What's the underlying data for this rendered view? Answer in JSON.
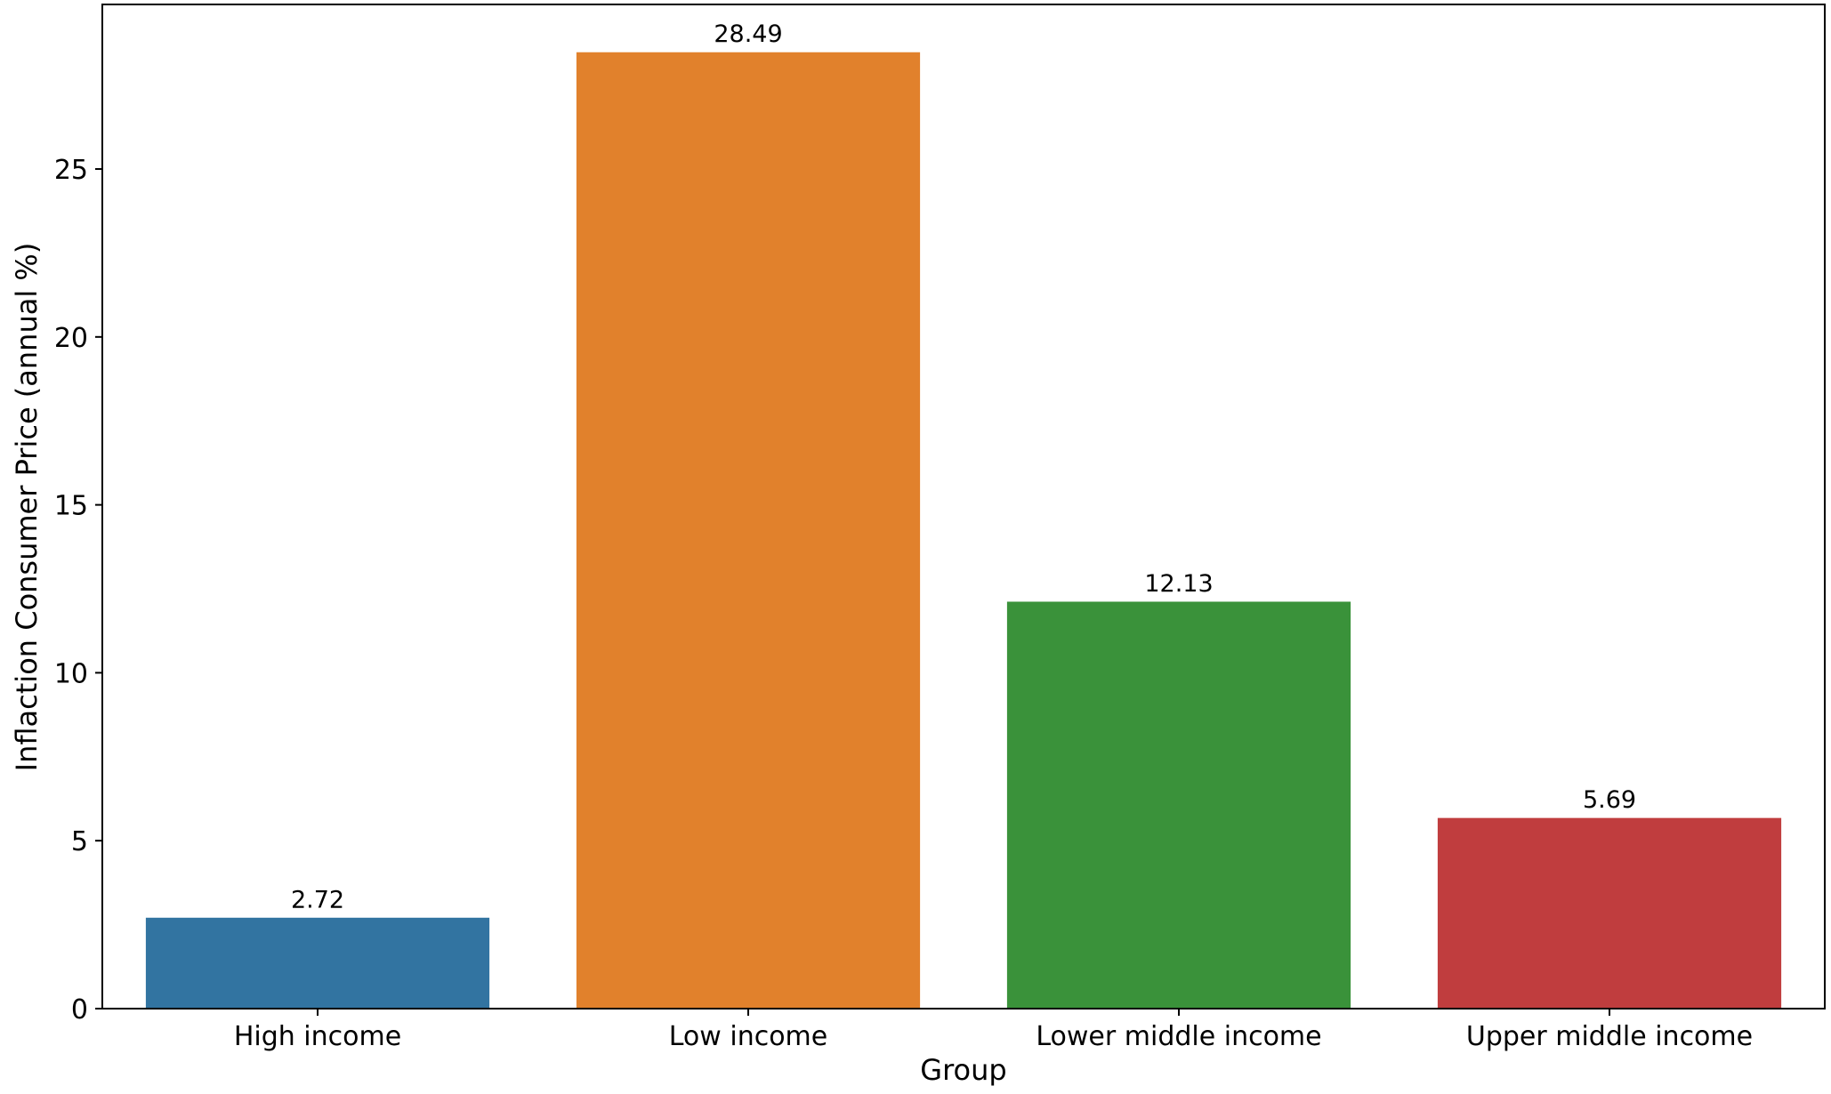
{
  "chart_data": {
    "type": "bar",
    "categories": [
      "High income",
      "Low income",
      "Lower middle income",
      "Upper middle income"
    ],
    "values": [
      2.72,
      28.49,
      12.13,
      5.69
    ],
    "value_labels": [
      "2.72",
      "28.49",
      "12.13",
      "5.69"
    ],
    "colors": [
      "#3274a1",
      "#e1812c",
      "#3a923a",
      "#c03d3e"
    ],
    "title": "",
    "xlabel": "Group",
    "ylabel": "Inflaction Consumer Price (annual %)",
    "ylim": [
      0,
      29.9
    ],
    "yticks": [
      0,
      5,
      10,
      15,
      20,
      25
    ],
    "ytick_labels": [
      "0",
      "5",
      "10",
      "15",
      "20",
      "25"
    ],
    "grid": false,
    "legend": "none"
  }
}
